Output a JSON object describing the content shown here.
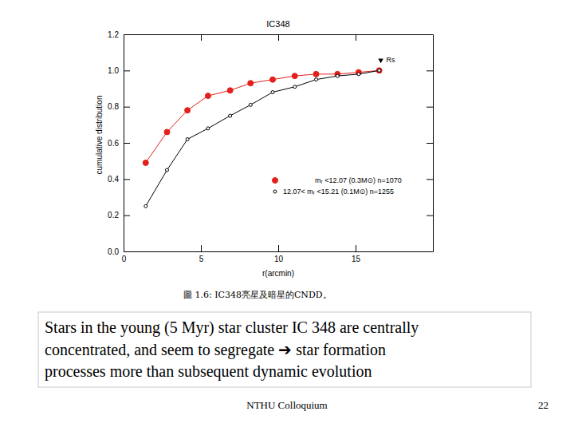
{
  "chart_data": {
    "type": "line",
    "title": "IC348",
    "x_label": "r(arcmin)",
    "y_label": "cumulative distribution",
    "xlim": [
      0,
      20
    ],
    "ylim": [
      0,
      1.2
    ],
    "xticks": [
      0,
      5,
      10,
      15
    ],
    "yticks": [
      {
        "value": 0,
        "label": "0.0"
      },
      {
        "value": 0.2,
        "label": "0.2"
      },
      {
        "value": 0.4,
        "label": "0.4"
      },
      {
        "value": 0.6,
        "label": "0.6"
      },
      {
        "value": 0.8,
        "label": "0.8"
      },
      {
        "value": 1.0,
        "label": "1.0"
      },
      {
        "value": 1.2,
        "label": "1.2"
      }
    ],
    "grid": false,
    "legend": "lower right",
    "x": [
      1.43,
      2.81,
      4.13,
      5.46,
      6.89,
      8.21,
      9.64,
      11.07,
      12.45,
      13.83,
      15.2,
      16.53
    ],
    "series": [
      {
        "name": "mᵣ <12.07 (0.3M⊙) n=1070",
        "color": "#e3201b",
        "marker": "filled-circle",
        "line_style": "solid",
        "values": [
          0.49,
          0.66,
          0.78,
          0.86,
          0.89,
          0.93,
          0.95,
          0.97,
          0.98,
          0.98,
          0.99,
          1.0
        ]
      },
      {
        "name": "12.07< mᵣ <15.21 (0.1M⊙) n=1255",
        "color": "#000000",
        "marker": "open-circle",
        "line_style": "solid",
        "values": [
          0.25,
          0.45,
          0.62,
          0.68,
          0.75,
          0.81,
          0.88,
          0.91,
          0.95,
          0.97,
          0.98,
          1.0
        ]
      }
    ],
    "annotations": [
      {
        "text": "Rs",
        "x": 16.63,
        "y": 1.057
      }
    ]
  },
  "slide": {
    "caption": "圖 1.6: IC348亮星及暗星的CNDD。",
    "note": [
      "Stars in the young (5 Myr) star cluster IC 348 are centrally",
      "concentrated, and seem to segregate ➔ star formation",
      "processes more than subsequent dynamic evolution"
    ],
    "footer": "NTHU Colloquium",
    "page": "22"
  }
}
